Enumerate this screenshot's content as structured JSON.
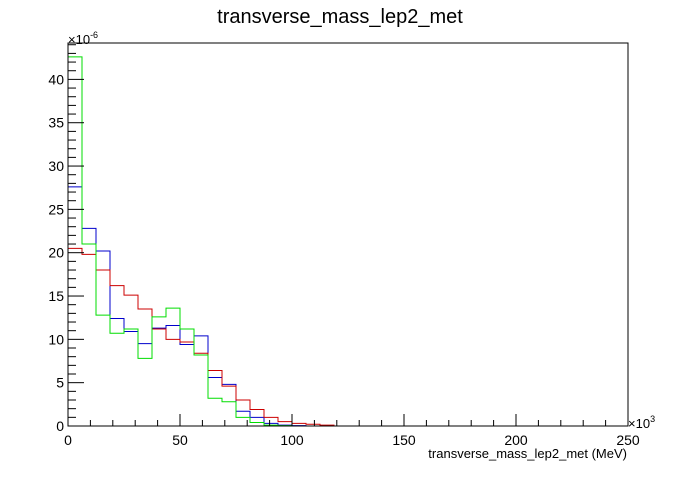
{
  "chart_data": {
    "type": "histogram",
    "title": "transverse_mass_lep2_met",
    "xlabel": "transverse_mass_lep2_met (MeV)",
    "ylabel": "",
    "x_multiplier_base": "×10",
    "x_multiplier_exp": "3",
    "y_multiplier_base": "×10",
    "y_multiplier_exp": "-6",
    "xlim": [
      0,
      250
    ],
    "ylim": [
      0,
      44.2
    ],
    "grid": false,
    "legend": "none",
    "x_ticks": [
      0,
      50,
      100,
      150,
      200,
      250
    ],
    "x_tick_labels": [
      "0",
      "50",
      "100",
      "150",
      "200",
      "250"
    ],
    "y_ticks": [
      0,
      5,
      10,
      15,
      20,
      25,
      30,
      35,
      40
    ],
    "y_tick_labels": [
      "0",
      "5",
      "10",
      "15",
      "20",
      "25",
      "30",
      "35",
      "40"
    ],
    "bin_edges": [
      0,
      6.25,
      12.5,
      18.75,
      25,
      31.25,
      37.5,
      43.75,
      50,
      56.25,
      62.5,
      68.75,
      75,
      81.25,
      87.5,
      93.75,
      100,
      106.25,
      112.5,
      118.75,
      125
    ],
    "series": [
      {
        "color": "#0000cc",
        "values": [
          27.6,
          22.8,
          20.2,
          12.4,
          10.9,
          9.5,
          11.3,
          11.6,
          9.4,
          10.4,
          5.6,
          4.8,
          1.7,
          1.0,
          0.3,
          0.1,
          0.05,
          0.0,
          0.0,
          0.0
        ]
      },
      {
        "color": "#cc0000",
        "values": [
          20.5,
          19.8,
          18.0,
          16.2,
          15.1,
          13.5,
          11.2,
          10.0,
          9.7,
          8.4,
          6.4,
          4.6,
          3.0,
          1.9,
          1.0,
          0.5,
          0.3,
          0.2,
          0.1,
          0.0
        ]
      },
      {
        "color": "#00dd00",
        "values": [
          42.6,
          21.0,
          12.8,
          10.7,
          11.2,
          7.8,
          12.6,
          13.6,
          11.2,
          8.2,
          3.2,
          2.8,
          1.0,
          0.4,
          0.1,
          0.05,
          0.0,
          0.0,
          0.0,
          0.0
        ]
      }
    ]
  }
}
